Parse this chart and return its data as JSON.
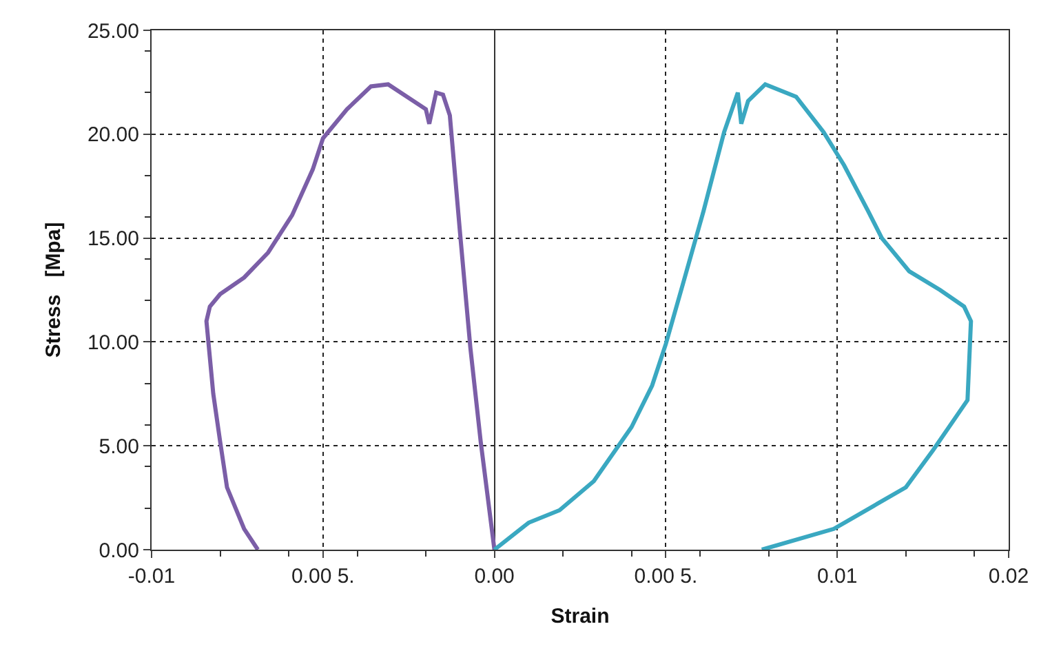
{
  "chart_data": {
    "type": "line",
    "xlabel": "Strain",
    "ylabel": "Stress   [Mpa]",
    "xlim": [
      -0.01,
      0.015
    ],
    "ylim": [
      0,
      25
    ],
    "xticks": [
      {
        "value": -0.01,
        "label": "-0.01"
      },
      {
        "value": -0.005,
        "label": "0.00 5."
      },
      {
        "value": 0,
        "label": "0.00"
      },
      {
        "value": 0.005,
        "label": "0.00 5."
      },
      {
        "value": 0.01,
        "label": "0.01"
      },
      {
        "value": 0.015,
        "label": "0.02"
      }
    ],
    "yticks": [
      {
        "value": 0,
        "label": "0.00"
      },
      {
        "value": 5,
        "label": "5.00"
      },
      {
        "value": 10,
        "label": "10.00"
      },
      {
        "value": 15,
        "label": "15.00"
      },
      {
        "value": 20,
        "label": "20.00"
      },
      {
        "value": 25,
        "label": "25.00"
      }
    ],
    "grid": true,
    "marker": "none",
    "line_style": "solid",
    "series": [
      {
        "color": "#7b5ea7",
        "x": [
          -0.0069,
          -0.0073,
          -0.0078,
          -0.008,
          -0.0082,
          -0.0084,
          -0.0083,
          -0.008,
          -0.0073,
          -0.0066,
          -0.0059,
          -0.0053,
          -0.005,
          -0.0043,
          -0.0036,
          -0.0031,
          -0.002,
          -0.0019,
          -0.0017,
          -0.0015,
          -0.0013,
          -0.001,
          -0.0007,
          -0.0004,
          0
        ],
        "values": [
          0,
          1.0,
          3.0,
          5.2,
          7.5,
          11.0,
          11.7,
          12.3,
          13.1,
          14.3,
          16.1,
          18.3,
          19.8,
          21.2,
          22.3,
          22.4,
          21.2,
          20.5,
          22.0,
          21.9,
          20.9,
          15.2,
          9.7,
          5.2,
          0
        ]
      },
      {
        "color": "#3aa8c1",
        "x": [
          0,
          0.001,
          0.0019,
          0.0029,
          0.004,
          0.0046,
          0.005,
          0.0055,
          0.0061,
          0.0067,
          0.0071,
          0.0072,
          0.0074,
          0.0079,
          0.0088,
          0.0096,
          0.0102,
          0.0109,
          0.0113,
          0.0121,
          0.013,
          0.0137,
          0.0139,
          0.0138,
          0.0128,
          0.012,
          0.0099,
          0.0078
        ],
        "values": [
          0,
          1.3,
          1.9,
          3.3,
          5.9,
          7.9,
          9.9,
          12.8,
          16.3,
          20.1,
          22.0,
          20.5,
          21.6,
          22.4,
          21.8,
          20.1,
          18.5,
          16.3,
          15.0,
          13.4,
          12.5,
          11.7,
          11.0,
          7.2,
          4.8,
          3.0,
          1.0,
          0
        ]
      }
    ]
  }
}
